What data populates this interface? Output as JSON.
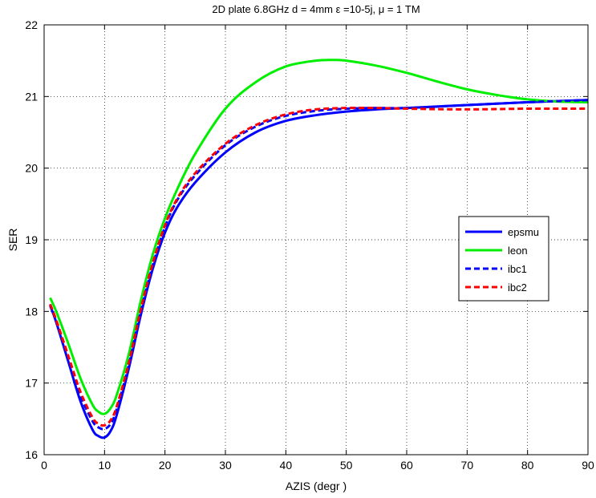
{
  "chart_data": {
    "type": "line",
    "title": "2D plate 6.8GHz d = 4mm ε =10-5j, μ = 1 TM",
    "xlabel": "AZIS (degr )",
    "ylabel": "SER",
    "xlim": [
      0,
      90
    ],
    "ylim": [
      16,
      22
    ],
    "xticks": [
      0,
      10,
      20,
      30,
      40,
      50,
      60,
      70,
      80,
      90
    ],
    "yticks": [
      16,
      17,
      18,
      19,
      20,
      21,
      22
    ],
    "grid": true,
    "legend_position": "right",
    "series": [
      {
        "name": "epsmu",
        "color": "#0000ff",
        "style": "solid",
        "x": [
          1,
          2,
          4,
          6,
          8,
          9,
          10,
          11,
          12,
          14,
          16,
          18,
          20,
          22,
          25,
          30,
          35,
          40,
          45,
          50,
          55,
          60,
          70,
          80,
          90
        ],
        "y": [
          18.08,
          17.85,
          17.3,
          16.75,
          16.35,
          16.26,
          16.24,
          16.33,
          16.55,
          17.2,
          17.95,
          18.6,
          19.1,
          19.45,
          19.8,
          20.22,
          20.5,
          20.66,
          20.74,
          20.79,
          20.82,
          20.84,
          20.88,
          20.92,
          20.95
        ]
      },
      {
        "name": "leon",
        "color": "#00ee00",
        "style": "solid",
        "x": [
          1,
          2,
          4,
          6,
          8,
          9,
          10,
          11,
          12,
          14,
          16,
          18,
          20,
          22,
          25,
          30,
          35,
          40,
          45,
          48,
          50,
          55,
          60,
          65,
          70,
          75,
          80,
          85,
          90
        ],
        "y": [
          18.19,
          18.0,
          17.55,
          17.07,
          16.7,
          16.6,
          16.57,
          16.65,
          16.83,
          17.4,
          18.15,
          18.8,
          19.3,
          19.7,
          20.2,
          20.83,
          21.2,
          21.42,
          21.5,
          21.51,
          21.5,
          21.43,
          21.33,
          21.21,
          21.1,
          21.02,
          20.96,
          20.93,
          20.92
        ]
      },
      {
        "name": "ibc1",
        "color": "#0000ff",
        "style": "dashed",
        "x": [
          1,
          2,
          4,
          6,
          8,
          9,
          10,
          11,
          12,
          14,
          16,
          18,
          20,
          22,
          25,
          30,
          35,
          40,
          45,
          50,
          55,
          60,
          70,
          80,
          90
        ],
        "y": [
          18.1,
          17.87,
          17.35,
          16.83,
          16.47,
          16.38,
          16.36,
          16.43,
          16.63,
          17.25,
          18.0,
          18.65,
          19.18,
          19.55,
          19.9,
          20.32,
          20.58,
          20.73,
          20.8,
          20.83,
          20.84,
          20.84,
          20.88,
          20.92,
          20.95
        ]
      },
      {
        "name": "ibc2",
        "color": "#ff0000",
        "style": "dashed",
        "x": [
          1,
          2,
          4,
          6,
          8,
          9,
          10,
          11,
          12,
          14,
          16,
          18,
          20,
          22,
          25,
          30,
          35,
          40,
          45,
          50,
          55,
          60,
          70,
          80,
          90
        ],
        "y": [
          18.1,
          17.88,
          17.38,
          16.88,
          16.52,
          16.43,
          16.41,
          16.48,
          16.67,
          17.28,
          18.03,
          18.68,
          19.2,
          19.57,
          19.93,
          20.34,
          20.6,
          20.75,
          20.82,
          20.84,
          20.84,
          20.83,
          20.82,
          20.83,
          20.83
        ]
      }
    ]
  }
}
